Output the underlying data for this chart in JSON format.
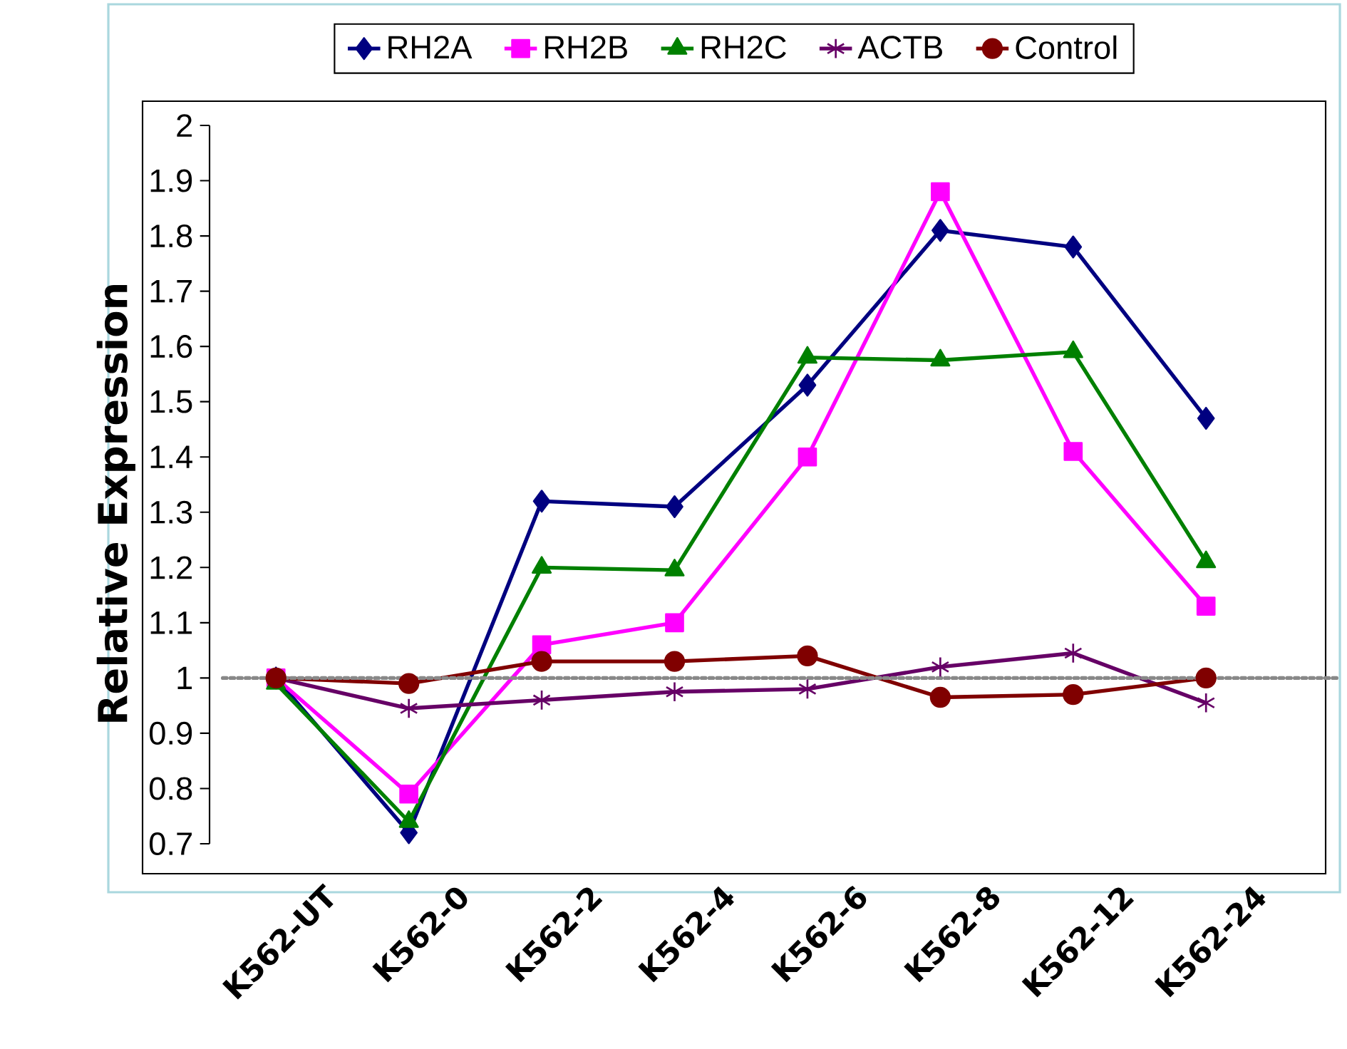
{
  "chart_data": {
    "type": "line",
    "ylabel": "Relative Expression",
    "categories": [
      "K562-UT",
      "K562-0",
      "K562-2",
      "K562-4",
      "K562-6",
      "K562-8",
      "K562-12",
      "K562-24"
    ],
    "series": [
      {
        "name": "RH2A",
        "color": "#000080",
        "marker": "diamond",
        "values": [
          1.0,
          0.72,
          1.32,
          1.31,
          1.53,
          1.81,
          1.78,
          1.47
        ]
      },
      {
        "name": "RH2B",
        "color": "#ff00ff",
        "marker": "square",
        "values": [
          1.0,
          0.79,
          1.06,
          1.1,
          1.4,
          1.88,
          1.41,
          1.13
        ]
      },
      {
        "name": "RH2C",
        "color": "#008000",
        "marker": "triangle",
        "values": [
          0.99,
          0.74,
          1.2,
          1.195,
          1.58,
          1.575,
          1.59,
          1.21
        ]
      },
      {
        "name": "ACTB",
        "color": "#660066",
        "marker": "cross",
        "values": [
          1.0,
          0.945,
          0.96,
          0.975,
          0.98,
          1.02,
          1.045,
          0.955
        ]
      },
      {
        "name": "Control",
        "color": "#800000",
        "marker": "circle",
        "values": [
          1.0,
          0.99,
          1.03,
          1.03,
          1.04,
          0.965,
          0.97,
          1.0
        ]
      }
    ],
    "ylim": [
      0.7,
      2
    ],
    "yticks": [
      0.7,
      0.8,
      0.9,
      1,
      1.1,
      1.2,
      1.3,
      1.4,
      1.5,
      1.6,
      1.7,
      1.8,
      1.9,
      2
    ],
    "ref_lines": [
      {
        "axis": "y",
        "value": 1,
        "color": "#888888",
        "line_style": "dotted"
      }
    ],
    "grid": false,
    "legend": "top",
    "line_style": "solid"
  }
}
